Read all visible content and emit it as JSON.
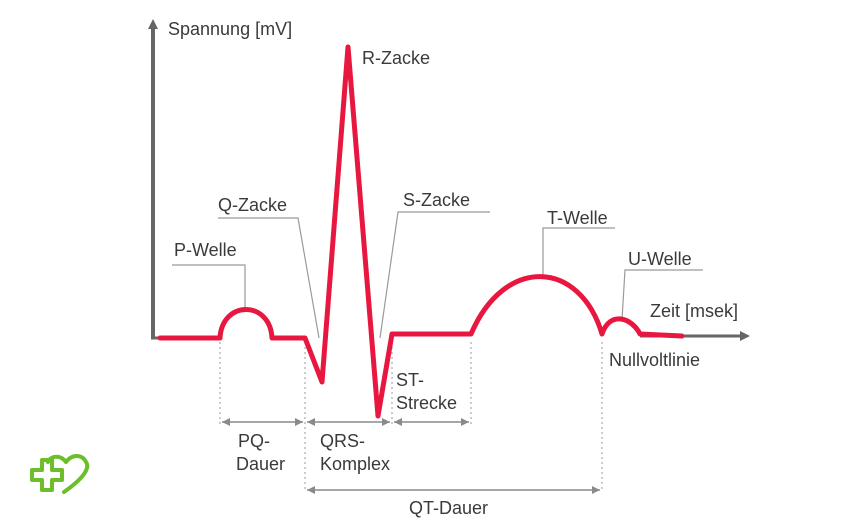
{
  "colors": {
    "trace": "#e8173f",
    "axis": "#666666",
    "guide": "#9a9a9a",
    "text": "#3a3a3a",
    "logo": "#6cbf2a"
  },
  "axes": {
    "y_label": "Spannung [mV]",
    "x_label": "Zeit [msek]",
    "baseline_label": "Nullvoltlinie"
  },
  "waves": {
    "p": "P-Welle",
    "q": "Q-Zacke",
    "r": "R-Zacke",
    "s": "S-Zacke",
    "t": "T-Welle",
    "u": "U-Welle"
  },
  "segments": {
    "st_line1": "ST-",
    "st_line2": "Strecke"
  },
  "intervals": {
    "pq_line1": "PQ-",
    "pq_line2": "Dauer",
    "qrs_line1": "QRS-",
    "qrs_line2": "Komplex",
    "qt": "QT-Dauer"
  },
  "logo": {
    "icon": "heart-cross-icon"
  }
}
